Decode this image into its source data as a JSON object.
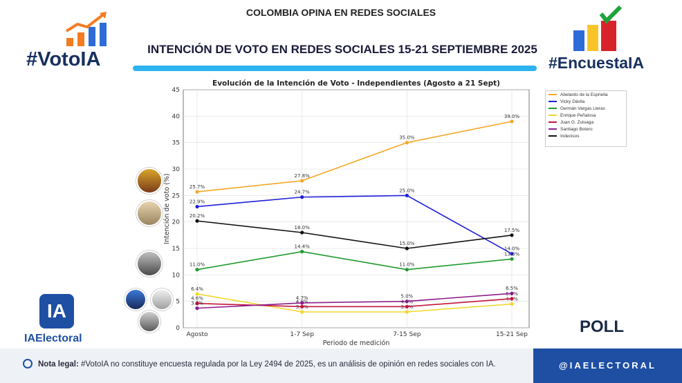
{
  "header": {
    "top_title": "COLOMBIA OPINA EN REDES SOCIALES",
    "main_title": "INTENCIÓN DE VOTO EN REDES SOCIALES  15-21 SEPTIEMBRE 2025",
    "brand_left": "#VotoIA",
    "brand_right": "#EncuestaIA"
  },
  "chart_data": {
    "type": "line",
    "title": "Evolución de la Intención de Voto - Independientes (Agosto a 21 Sept)",
    "xlabel": "Periodo de medición",
    "ylabel": "Intención de voto (%)",
    "categories": [
      "Agosto",
      "1-7 Sep",
      "7-15 Sep",
      "15-21 Sep"
    ],
    "ylim": [
      0,
      45
    ],
    "yticks": [
      0,
      5,
      10,
      15,
      20,
      25,
      30,
      35,
      40,
      45
    ],
    "grid": true,
    "legend_position": "right",
    "series": [
      {
        "name": "Abelardo de la Espriella",
        "color": "#f5a623",
        "values": [
          25.7,
          27.8,
          35.0,
          39.0
        ],
        "labels": [
          "25.7%",
          "27.8%",
          "35.0%",
          "39.0%"
        ]
      },
      {
        "name": "Vicky Dávila",
        "color": "#1f1fdc",
        "values": [
          22.9,
          24.7,
          25.0,
          14.0
        ],
        "labels": [
          "22.9%",
          "24.7%",
          "25.0%",
          "14.0%"
        ]
      },
      {
        "name": "Germán Vargas Lleras",
        "color": "#1e9a2e",
        "values": [
          11.0,
          14.4,
          11.0,
          13.0
        ],
        "labels": [
          "11.0%",
          "14.4%",
          "11.0%",
          "13.0%"
        ]
      },
      {
        "name": "Enrique Peñalosa",
        "color": "#f1d82a",
        "values": [
          6.4,
          3.0,
          3.0,
          4.5
        ],
        "labels": [
          "6.4%",
          "3.0%",
          "3.0%",
          "4.5%"
        ]
      },
      {
        "name": "Juan G. Zuluaga",
        "color": "#c0143c",
        "values": [
          4.6,
          4.0,
          4.0,
          5.5
        ],
        "labels": [
          "4.6%",
          "4.0%",
          "4.0%",
          "5.5%"
        ]
      },
      {
        "name": "Santiago Botero",
        "color": "#8b1a8b",
        "values": [
          3.7,
          4.7,
          5.0,
          6.5
        ],
        "labels": [
          "3.7%",
          "4.7%",
          "5.0%",
          "6.5%"
        ]
      },
      {
        "name": "Indecisos",
        "color": "#111111",
        "values": [
          20.2,
          18.0,
          15.0,
          17.5
        ],
        "labels": [
          "20.2%",
          "18.0%",
          "15.0%",
          "17.5%"
        ]
      }
    ]
  },
  "branding": {
    "ia_logo": "IA",
    "ia_brand": "IAElectoral",
    "poll": "POLL"
  },
  "footer": {
    "note_bold": "Nota legal:",
    "note_text": " #VotoIA no constituye encuesta regulada por la Ley 2494 de 2025, es un análisis de opinión en redes sociales con IA.",
    "handle": "@IAELECTORAL"
  }
}
